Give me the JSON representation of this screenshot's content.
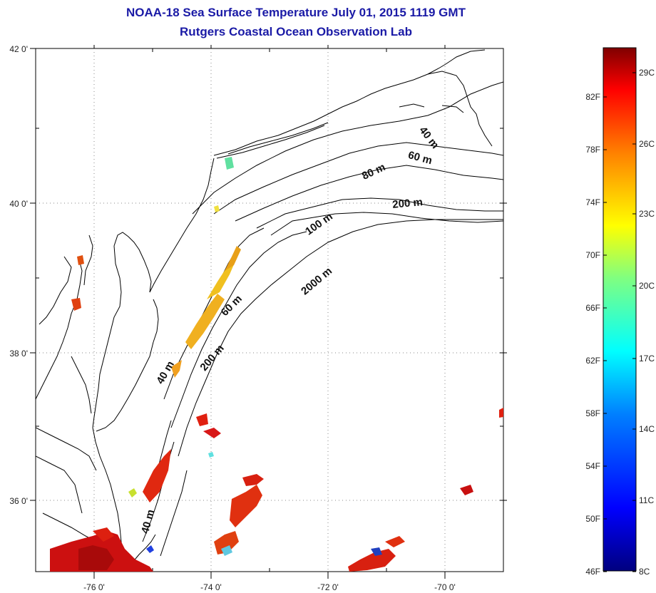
{
  "title": {
    "line1": "NOAA-18 Sea Surface Temperature July 01, 2015 1119 GMT",
    "line2": "Rutgers Coastal Ocean Observation Lab"
  },
  "map": {
    "lat_labels": [
      "42 0'",
      "40 0'",
      "38 0'",
      "36 0'"
    ],
    "lon_labels": [
      "-76 0'",
      "-74 0'",
      "-72 0'",
      "-70 0'"
    ],
    "isobath_labels": [
      "40 m",
      "60 m",
      "80 m",
      "200 m",
      "100 m",
      "2000 m",
      "60 m",
      "40 m",
      "200 m",
      "40 m"
    ],
    "colors": {
      "land_line": "#000000",
      "grid": "#888888",
      "title": "#1a1aa6"
    }
  },
  "colorbar": {
    "fahrenheit_labels": [
      "82F",
      "78F",
      "74F",
      "70F",
      "66F",
      "62F",
      "58F",
      "54F",
      "50F",
      "46F"
    ],
    "celsius_labels": [
      "29C",
      "26C",
      "23C",
      "20C",
      "17C",
      "14C",
      "11C",
      "8C"
    ],
    "range_c": [
      8,
      31
    ]
  }
}
